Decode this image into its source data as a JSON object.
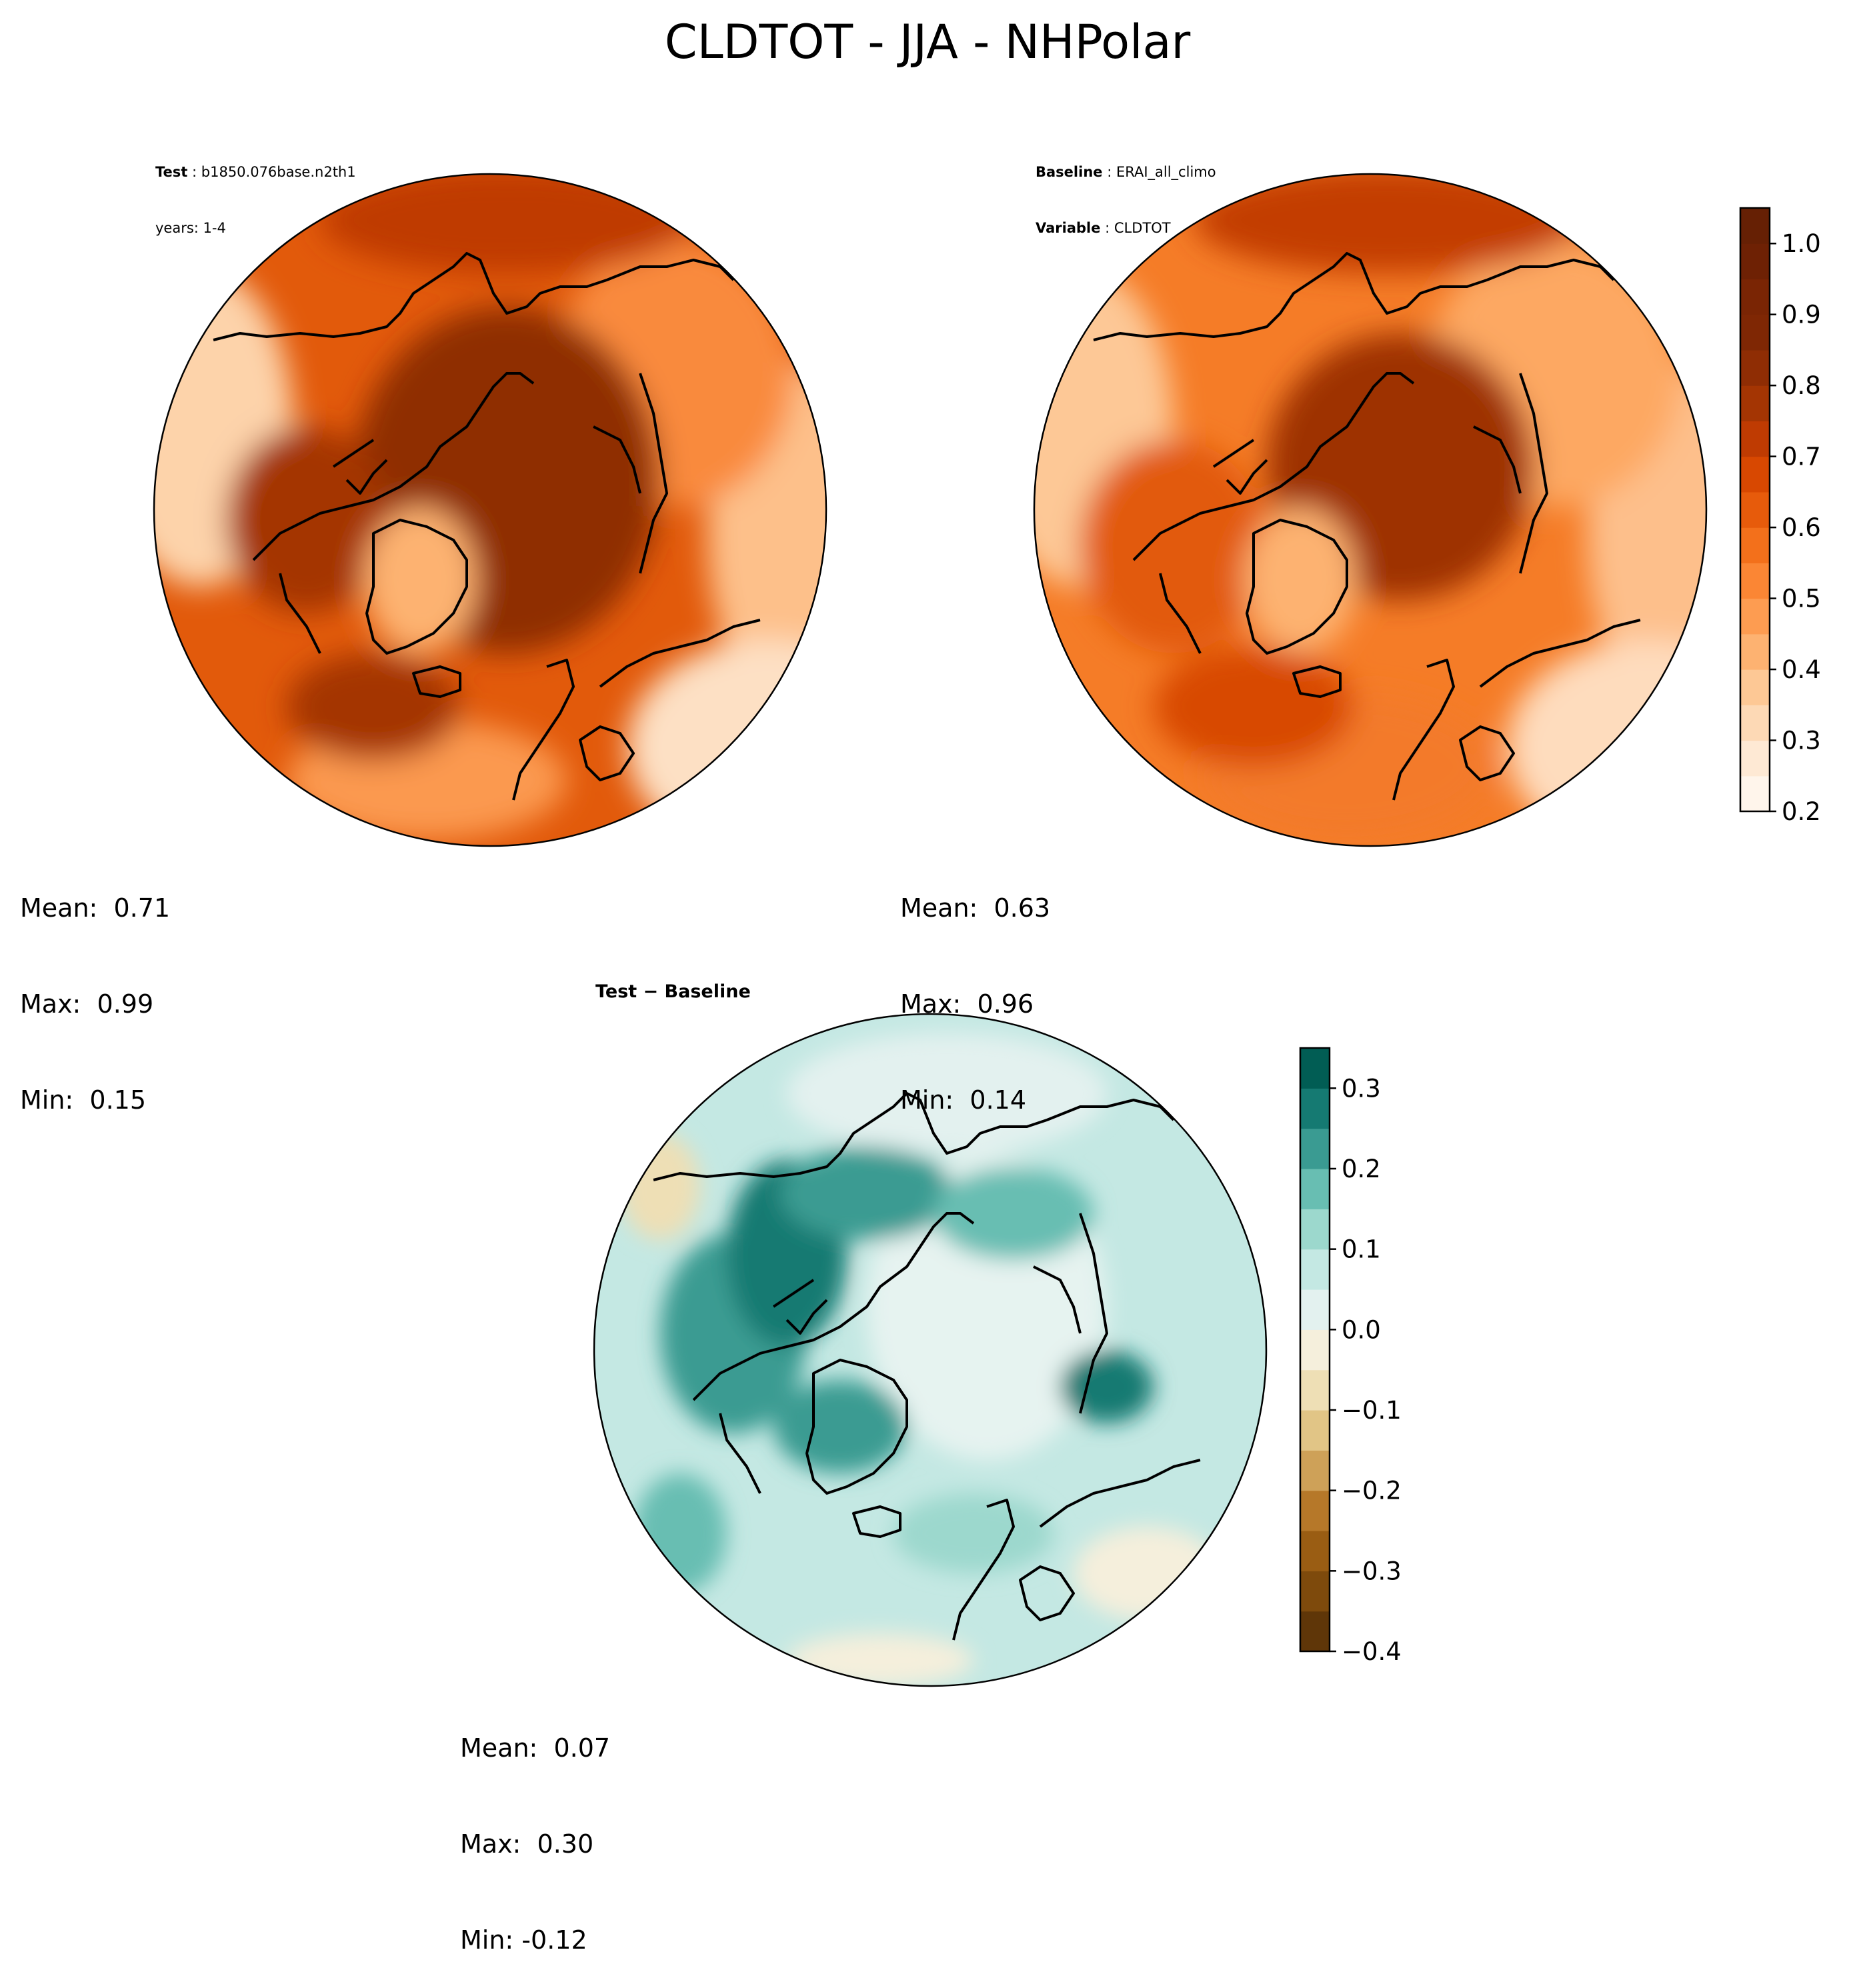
{
  "figure": {
    "title": "CLDTOT - JJA - NHPolar"
  },
  "test_panel": {
    "header": [
      {
        "key": "Test",
        "value": "b1850.076base.n2th1"
      },
      {
        "key": "",
        "value": "years: 1-4"
      }
    ],
    "stats": {
      "mean": "Mean:  0.71",
      "max": "Max:  0.99",
      "min": "Min:  0.15"
    }
  },
  "baseline_panel": {
    "header": [
      {
        "key": "Baseline",
        "value": "ERAI_all_climo"
      },
      {
        "key": "Variable",
        "value": "CLDTOT"
      }
    ],
    "stats": {
      "mean": "Mean:  0.63",
      "max": "Max:  0.96",
      "min": "Min:  0.14"
    }
  },
  "diff_panel": {
    "title": "Test − Baseline",
    "stats": {
      "mean": "Mean:  0.07",
      "max": "Max:  0.30",
      "min": "Min: -0.12"
    }
  },
  "chart_data": [
    {
      "type": "heatmap",
      "projection": "north-polar-stereographic",
      "panel": "test",
      "variable": "CLDTOT",
      "season": "JJA",
      "colormap": "Oranges",
      "levels": [
        0.2,
        0.25,
        0.3,
        0.35,
        0.4,
        0.45,
        0.5,
        0.55,
        0.6,
        0.65,
        0.7,
        0.75,
        0.8,
        0.85,
        0.9,
        0.95,
        1.0,
        1.05
      ],
      "mean": 0.71,
      "max": 0.99,
      "min": 0.15
    },
    {
      "type": "heatmap",
      "projection": "north-polar-stereographic",
      "panel": "baseline",
      "variable": "CLDTOT",
      "season": "JJA",
      "colormap": "Oranges",
      "levels": [
        0.2,
        0.25,
        0.3,
        0.35,
        0.4,
        0.45,
        0.5,
        0.55,
        0.6,
        0.65,
        0.7,
        0.75,
        0.8,
        0.85,
        0.9,
        0.95,
        1.0,
        1.05
      ],
      "mean": 0.63,
      "max": 0.96,
      "min": 0.14
    },
    {
      "type": "heatmap",
      "projection": "north-polar-stereographic",
      "panel": "difference",
      "colormap": "BrBG",
      "levels": [
        -0.4,
        -0.35,
        -0.3,
        -0.25,
        -0.2,
        -0.15,
        -0.1,
        -0.05,
        0.0,
        0.05,
        0.1,
        0.15,
        0.2,
        0.25,
        0.3,
        0.35
      ],
      "mean": 0.07,
      "max": 0.3,
      "min": -0.12
    }
  ],
  "colorbars": {
    "main": {
      "ticks": [
        "1.0",
        "0.9",
        "0.8",
        "0.7",
        "0.6",
        "0.5",
        "0.4",
        "0.3",
        "0.2"
      ],
      "tick_values": [
        1.0,
        0.9,
        0.8,
        0.7,
        0.6,
        0.5,
        0.4,
        0.3,
        0.2
      ],
      "range": [
        0.2,
        1.05
      ],
      "colors": [
        "#fff5eb",
        "#fee9d4",
        "#fdd9b5",
        "#fdc895",
        "#fdb271",
        "#fd9c51",
        "#fb8634",
        "#f3701b",
        "#e75b0b",
        "#d84801",
        "#bf3b02",
        "#a43503",
        "#8f2d04",
        "#7f2704",
        "#7a2504",
        "#6e2104",
        "#662004"
      ]
    },
    "diff": {
      "ticks": [
        "0.3",
        "0.2",
        "0.1",
        "0.0",
        "−0.1",
        "−0.2",
        "−0.3",
        "−0.4"
      ],
      "tick_values": [
        0.3,
        0.2,
        0.1,
        0.0,
        -0.1,
        -0.2,
        -0.3,
        -0.4
      ],
      "range": [
        -0.4,
        0.35
      ],
      "colors": [
        "#5f3608",
        "#7e4a0c",
        "#9a5d13",
        "#b67829",
        "#cea158",
        "#e1c586",
        "#eedfb5",
        "#f5efdc",
        "#e3f1ef",
        "#c4e8e3",
        "#9cd8cd",
        "#68beb2",
        "#3a9b92",
        "#157a72",
        "#015d54"
      ]
    }
  },
  "map_style": {
    "coast_color": "#000000",
    "outline_color": "#000000"
  }
}
